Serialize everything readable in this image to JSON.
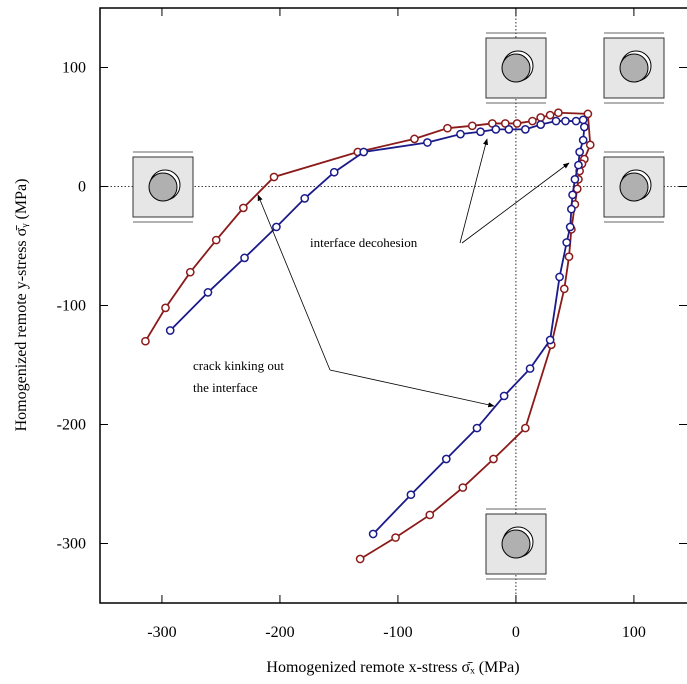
{
  "chart_data": {
    "type": "line",
    "xlabel": "Homogenized remote x-stress σ̄ₓ (MPa)",
    "ylabel": "Homogenized remote y-stress σ̄ᵧ (MPa)",
    "annotations": [
      [
        "interface decohesion"
      ],
      [
        "crack kinking out",
        "the interface"
      ]
    ],
    "xlim": [
      -352.5,
      145
    ],
    "ylim": [
      -350,
      150
    ],
    "xticks": [
      -300,
      -200,
      -100,
      0,
      100
    ],
    "yticks": [
      -300,
      -200,
      -100,
      0,
      100
    ],
    "series": [
      {
        "color": "#8b1a1a",
        "x": [
          -314,
          -297,
          -276,
          -254,
          -231,
          -205,
          -134,
          -86,
          -58,
          -37,
          -20,
          -9,
          1,
          14,
          21,
          29,
          36,
          61,
          63,
          58,
          56,
          54,
          53,
          52,
          50,
          47,
          45,
          41,
          30,
          8,
          -19,
          -45,
          -73,
          -102,
          -132
        ],
        "values": [
          -130,
          -102,
          -72,
          -45,
          -18,
          8,
          29,
          40,
          49,
          51,
          53,
          53,
          53,
          55,
          58,
          60,
          62,
          61,
          35,
          23,
          19,
          13,
          6,
          -2,
          -15,
          -36,
          -59,
          -86,
          -133,
          -203,
          -229,
          -253,
          -276,
          -295,
          -313
        ]
      },
      {
        "color": "#1a1a8b",
        "x": [
          -293,
          -261,
          -230,
          -203,
          -179,
          -154,
          -129,
          -75,
          -47,
          -30,
          -17,
          -6,
          8,
          21,
          34,
          42,
          51,
          57,
          58,
          57,
          54,
          53,
          50,
          48,
          47,
          46,
          43,
          37,
          29,
          12,
          -10,
          -33,
          -59,
          -89,
          -121
        ],
        "values": [
          -121,
          -89,
          -60,
          -34,
          -10,
          12,
          29,
          37,
          44,
          46,
          48,
          48,
          48,
          52,
          55,
          55,
          55,
          56,
          50,
          39,
          29,
          18,
          6,
          -7,
          -19,
          -34,
          -47,
          -76,
          -129,
          -153,
          -176,
          -203,
          -229,
          -259,
          -292
        ]
      }
    ]
  }
}
